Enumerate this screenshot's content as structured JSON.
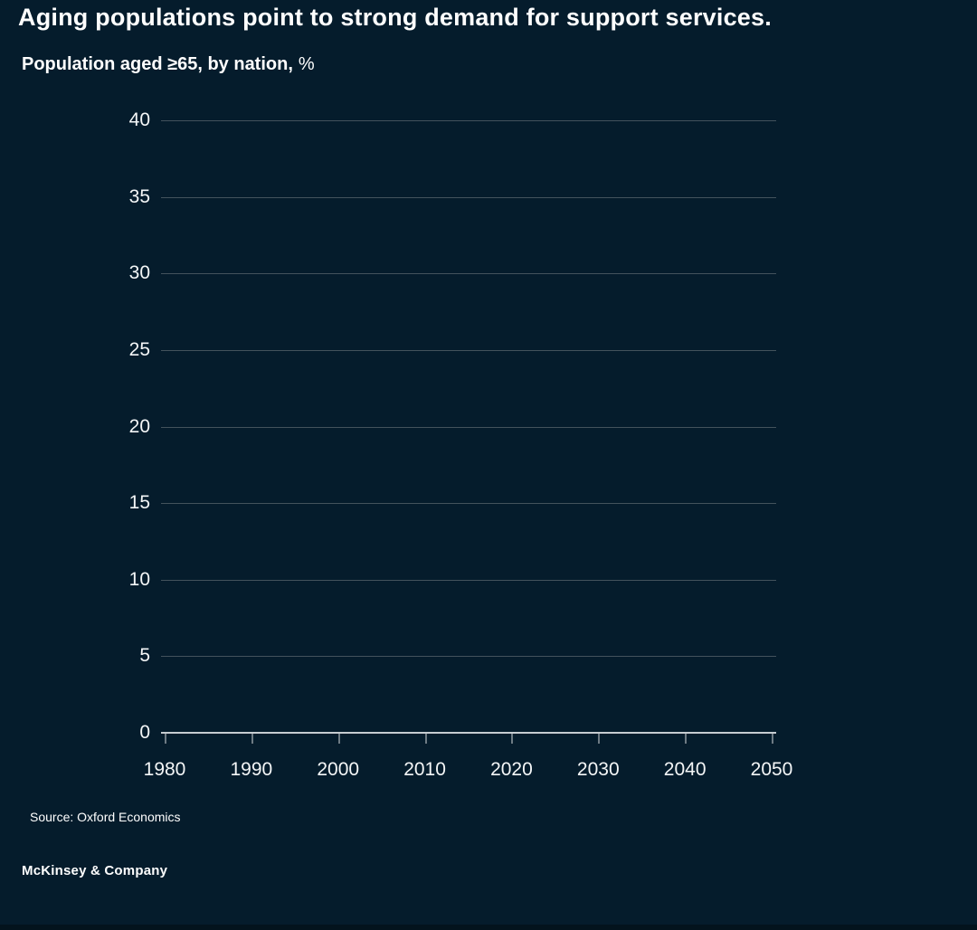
{
  "page": {
    "title": "Aging populations point to strong demand for support services.",
    "subtitle_main": "Population aged ≥65, by nation,",
    "subtitle_unit": "%",
    "source": "Source: Oxford Economics",
    "brand": "McKinsey & Company",
    "background_color": "#051C2C"
  },
  "chart_data": {
    "type": "line",
    "title": "Population aged ≥65, by nation, %",
    "xlabel": "",
    "ylabel": "%",
    "x_ticks": [
      1980,
      1990,
      2000,
      2010,
      2020,
      2030,
      2040,
      2050
    ],
    "y_ticks": [
      0,
      5,
      10,
      15,
      20,
      25,
      30,
      35,
      40
    ],
    "xlim": [
      1980,
      2050
    ],
    "ylim": [
      0,
      40
    ],
    "series": [],
    "grid": "horizontal-only",
    "legend": "none",
    "colors": {
      "background": "#051C2C",
      "gridline": "#43525C",
      "axis_line": "#C6CCD1",
      "tick_mark": "#6E7B84",
      "tick_text": "#F4F6F7",
      "title_text": "#FFFFFF"
    }
  }
}
